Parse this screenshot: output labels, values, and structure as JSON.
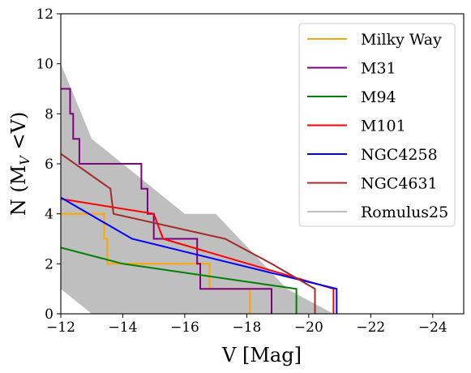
{
  "chart_data": {
    "type": "line",
    "title": "",
    "xlabel": "V [Mag]",
    "ylabel": "N (M",
    "ylabel_sub": "V",
    "ylabel_tail": " <V)",
    "xlim": [
      -12,
      -25
    ],
    "ylim": [
      0,
      12
    ],
    "x_ticks": [
      -12,
      -14,
      -16,
      -18,
      -20,
      -22,
      -24
    ],
    "x_tick_labels": [
      "−12",
      "−14",
      "−16",
      "−18",
      "−20",
      "−22",
      "−24"
    ],
    "y_ticks": [
      0,
      2,
      4,
      6,
      8,
      10,
      12
    ],
    "y_tick_labels": [
      "0",
      "2",
      "4",
      "6",
      "8",
      "10",
      "12"
    ],
    "grid": false,
    "legend_position": "top-right",
    "band": {
      "name": "Romulus25",
      "color": "#bfbfbf",
      "upper": [
        [
          -12,
          10
        ],
        [
          -13,
          7
        ],
        [
          -16,
          4
        ],
        [
          -17,
          4
        ],
        [
          -19.3,
          1
        ],
        [
          -20.8,
          0
        ]
      ],
      "lower": [
        [
          -12,
          1
        ],
        [
          -13,
          0
        ]
      ]
    },
    "series": [
      {
        "name": "Milky Way",
        "color": "#ffa500",
        "points": [
          [
            -12,
            4
          ],
          [
            -13.4,
            4
          ],
          [
            -13.4,
            3
          ],
          [
            -13.5,
            3
          ],
          [
            -13.5,
            2
          ],
          [
            -16.8,
            2
          ],
          [
            -16.8,
            1
          ],
          [
            -18.1,
            1
          ],
          [
            -18.1,
            0
          ]
        ]
      },
      {
        "name": "M31",
        "color": "#800080",
        "points": [
          [
            -12,
            9
          ],
          [
            -12.3,
            9
          ],
          [
            -12.3,
            8
          ],
          [
            -12.4,
            8
          ],
          [
            -12.4,
            7
          ],
          [
            -12.6,
            7
          ],
          [
            -12.6,
            6
          ],
          [
            -14.6,
            6
          ],
          [
            -14.6,
            5
          ],
          [
            -14.8,
            5
          ],
          [
            -14.8,
            4
          ],
          [
            -15,
            4
          ],
          [
            -15,
            3
          ],
          [
            -16.4,
            3
          ],
          [
            -16.4,
            2
          ],
          [
            -16.5,
            2
          ],
          [
            -16.5,
            1
          ],
          [
            -18.8,
            1
          ],
          [
            -18.8,
            0
          ]
        ]
      },
      {
        "name": "M94",
        "color": "#008000",
        "points": [
          [
            -12,
            2.65
          ],
          [
            -14,
            2
          ],
          [
            -19.6,
            1
          ],
          [
            -19.6,
            0
          ]
        ]
      },
      {
        "name": "M101",
        "color": "#ff0000",
        "points": [
          [
            -12,
            4.6
          ],
          [
            -15,
            4
          ],
          [
            -15.3,
            3
          ],
          [
            -20.8,
            1
          ],
          [
            -20.8,
            0
          ]
        ]
      },
      {
        "name": "NGC4258",
        "color": "#0000ff",
        "points": [
          [
            -12,
            4.65
          ],
          [
            -14.3,
            3
          ],
          [
            -20.9,
            1
          ],
          [
            -20.9,
            0
          ]
        ]
      },
      {
        "name": "NGC4631",
        "color": "#a52a2a",
        "points": [
          [
            -12,
            6.4
          ],
          [
            -13.6,
            5
          ],
          [
            -13.7,
            4
          ],
          [
            -17.3,
            3
          ],
          [
            -18.8,
            2
          ],
          [
            -20.2,
            1
          ],
          [
            -20.2,
            0
          ]
        ]
      }
    ]
  }
}
